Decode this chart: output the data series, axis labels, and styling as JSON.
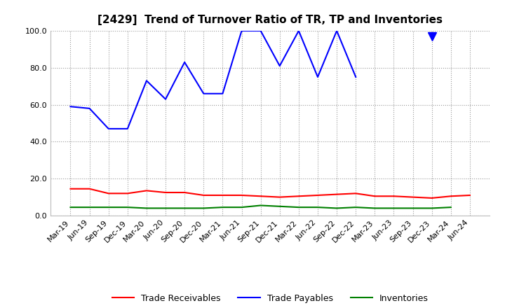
{
  "title": "[2429]  Trend of Turnover Ratio of TR, TP and Inventories",
  "ylim": [
    0.0,
    100.0
  ],
  "yticks": [
    0.0,
    20.0,
    40.0,
    60.0,
    80.0,
    100.0
  ],
  "x_labels": [
    "Mar-19",
    "Jun-19",
    "Sep-19",
    "Dec-19",
    "Mar-20",
    "Jun-20",
    "Sep-20",
    "Dec-20",
    "Mar-21",
    "Jun-21",
    "Sep-21",
    "Dec-21",
    "Mar-22",
    "Jun-22",
    "Sep-22",
    "Dec-22",
    "Mar-23",
    "Jun-23",
    "Sep-23",
    "Dec-23",
    "Mar-24",
    "Jun-24"
  ],
  "trade_receivables": [
    14.5,
    14.5,
    12.0,
    12.0,
    13.5,
    12.5,
    12.5,
    11.0,
    11.0,
    11.0,
    10.5,
    10.0,
    10.5,
    11.0,
    11.5,
    12.0,
    10.5,
    10.5,
    10.0,
    9.5,
    10.5,
    11.0
  ],
  "trade_payables": [
    59.0,
    58.0,
    47.0,
    47.0,
    73.0,
    63.0,
    83.0,
    66.0,
    66.0,
    100.0,
    100.0,
    81.0,
    100.0,
    75.0,
    100.0,
    75.0,
    null,
    null,
    null,
    97.0,
    null,
    null
  ],
  "inventories": [
    4.5,
    4.5,
    4.5,
    4.5,
    4.0,
    4.0,
    4.0,
    4.0,
    4.5,
    4.5,
    5.5,
    5.0,
    4.5,
    4.5,
    4.0,
    4.5,
    4.0,
    4.0,
    4.0,
    4.0,
    4.5,
    null
  ],
  "tr_color": "#ff0000",
  "tp_color": "#0000ff",
  "inv_color": "#008000",
  "legend_labels": [
    "Trade Receivables",
    "Trade Payables",
    "Inventories"
  ],
  "background_color": "#ffffff",
  "grid_color": "#999999",
  "title_fontsize": 11,
  "tick_fontsize": 8
}
